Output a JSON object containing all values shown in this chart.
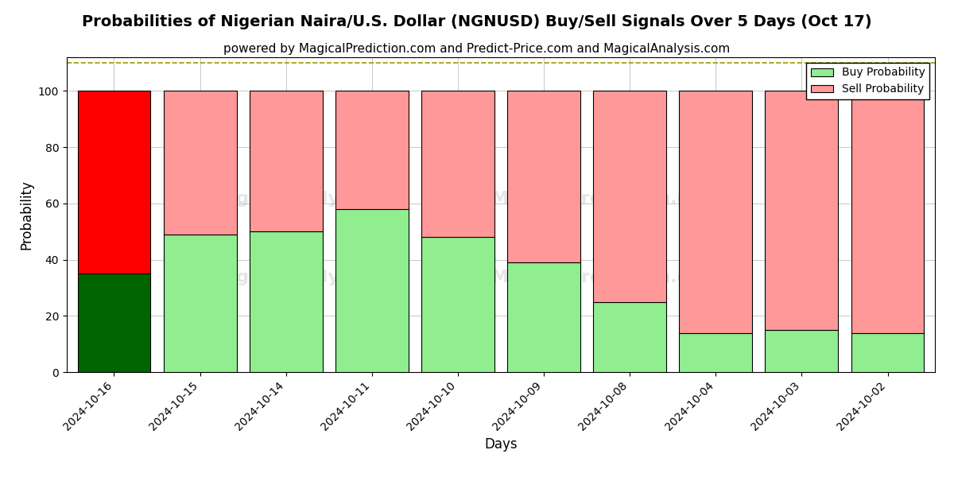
{
  "title": "Probabilities of Nigerian Naira/U.S. Dollar (NGNUSD) Buy/Sell Signals Over 5 Days (Oct 17)",
  "subtitle": "powered by MagicalPrediction.com and Predict-Price.com and MagicalAnalysis.com",
  "xlabel": "Days",
  "ylabel": "Probability",
  "categories": [
    "2024-10-16",
    "2024-10-15",
    "2024-10-14",
    "2024-10-11",
    "2024-10-10",
    "2024-10-09",
    "2024-10-08",
    "2024-10-04",
    "2024-10-03",
    "2024-10-02"
  ],
  "buy_values": [
    35,
    49,
    50,
    58,
    48,
    39,
    25,
    14,
    15,
    14
  ],
  "sell_values": [
    65,
    51,
    50,
    42,
    52,
    61,
    75,
    86,
    85,
    86
  ],
  "buy_colors": [
    "#006400",
    "#90EE90",
    "#90EE90",
    "#90EE90",
    "#90EE90",
    "#90EE90",
    "#90EE90",
    "#90EE90",
    "#90EE90",
    "#90EE90"
  ],
  "sell_colors": [
    "#FF0000",
    "#FF9999",
    "#FF9999",
    "#FF9999",
    "#FF9999",
    "#FF9999",
    "#FF9999",
    "#FF9999",
    "#FF9999",
    "#FF9999"
  ],
  "legend_buy_color": "#90EE90",
  "legend_sell_color": "#FF9999",
  "today_bg_color": "#FFFF00",
  "ylim": [
    0,
    112
  ],
  "yticks": [
    0,
    20,
    40,
    60,
    80,
    100
  ],
  "dashed_line_y": 110,
  "background_color": "#ffffff",
  "grid_color": "#c8c8c8",
  "title_fontsize": 14,
  "subtitle_fontsize": 11,
  "axis_label_fontsize": 12,
  "tick_fontsize": 10,
  "bar_width": 0.85
}
